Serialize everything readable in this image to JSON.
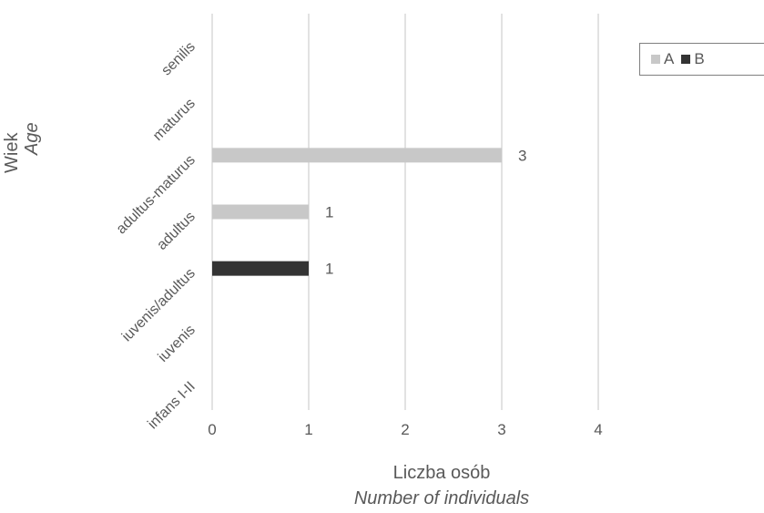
{
  "chart_data": {
    "type": "bar",
    "orientation": "horizontal",
    "categories": [
      "infans I-II",
      "iuvenis",
      "iuvenis/adultus",
      "adultus",
      "adultus-maturus",
      "maturus",
      "senilis"
    ],
    "series": [
      {
        "name": "A",
        "color": "#c8c8c8",
        "values": [
          0,
          0,
          0,
          1,
          3,
          0,
          0
        ]
      },
      {
        "name": "B",
        "color": "#333333",
        "values": [
          0,
          0,
          1,
          0,
          0,
          0,
          0
        ]
      }
    ],
    "x_ticks": [
      "0",
      "1",
      "2",
      "3",
      "4"
    ],
    "xlim": [
      0,
      4
    ],
    "data_labels": true,
    "grid": "vertical",
    "legend_position": "top-right",
    "xlabel": "Liczba osób",
    "xlabel_en": "Number of individuals",
    "ylabel": "Wiek",
    "ylabel_en": "Age"
  }
}
